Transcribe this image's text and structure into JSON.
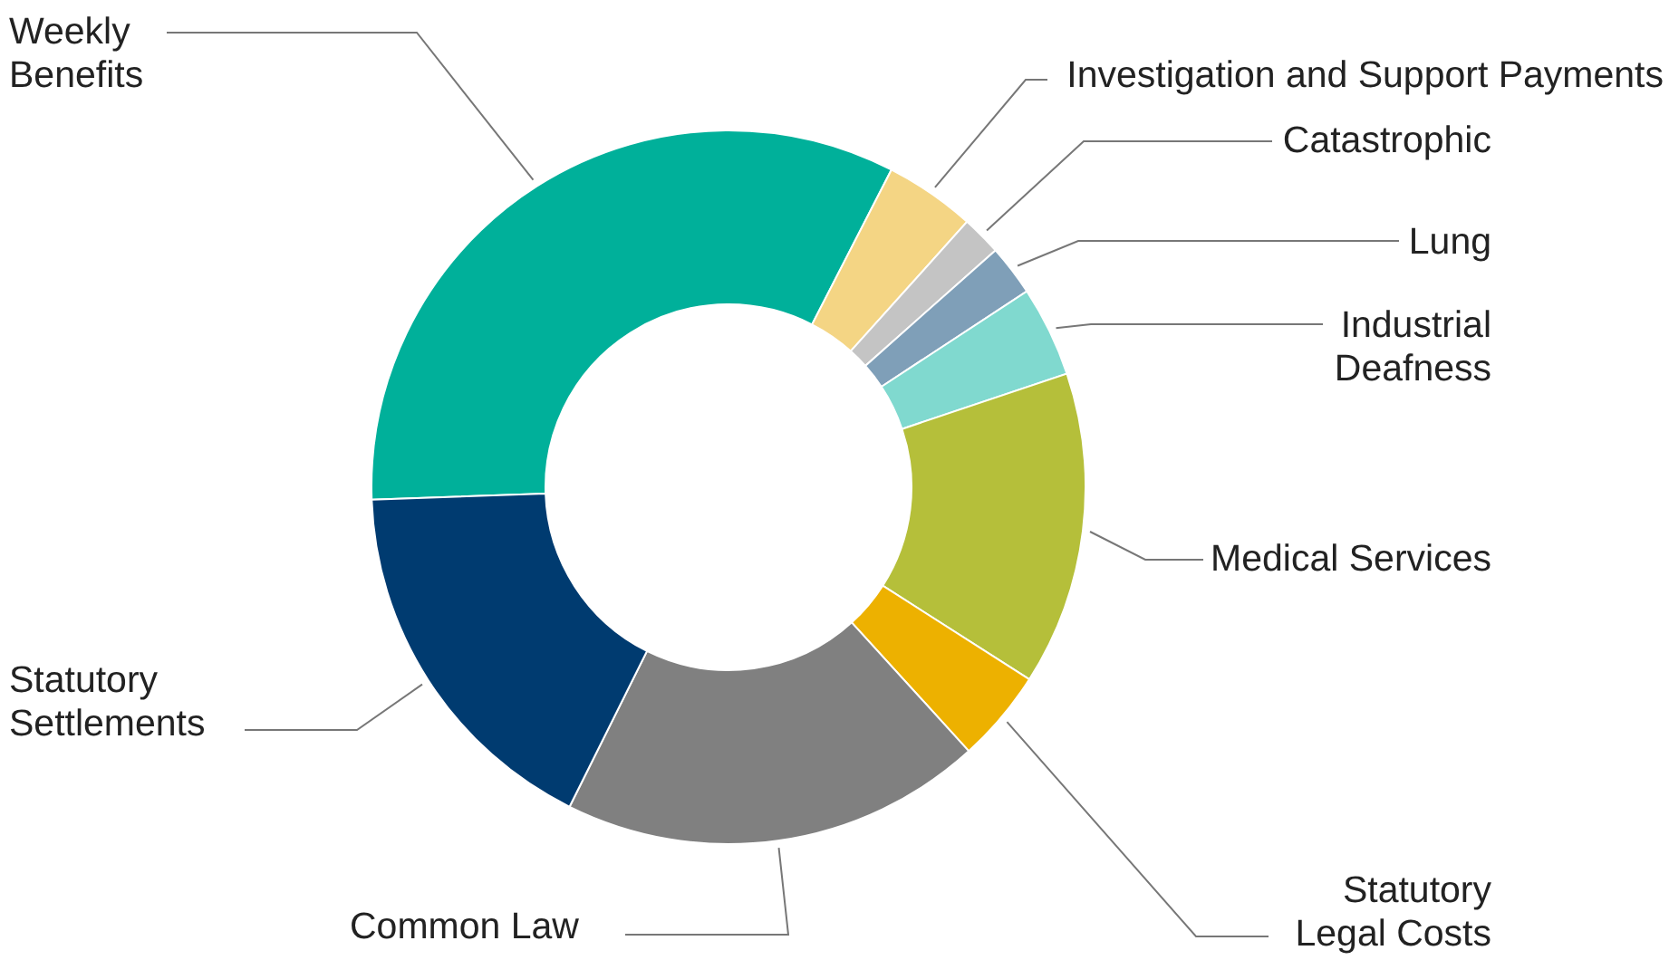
{
  "chart_data": {
    "type": "donut",
    "categories": [
      "Weekly Benefits",
      "Investigation and Support Payments",
      "Catastrophic",
      "Lung",
      "Industrial Deafness",
      "Medical Services",
      "Statutory Legal Costs",
      "Common Law",
      "Statutory Settlements"
    ],
    "values": [
      33.1,
      4.1,
      1.8,
      2.3,
      4.1,
      14.2,
      4.2,
      19.1,
      17.1
    ],
    "colors": [
      "#00b09a",
      "#f4d584",
      "#c4c4c4",
      "#7f9fb8",
      "#80d9cf",
      "#b5bf3a",
      "#edb100",
      "#808080",
      "#003b70"
    ]
  }
}
